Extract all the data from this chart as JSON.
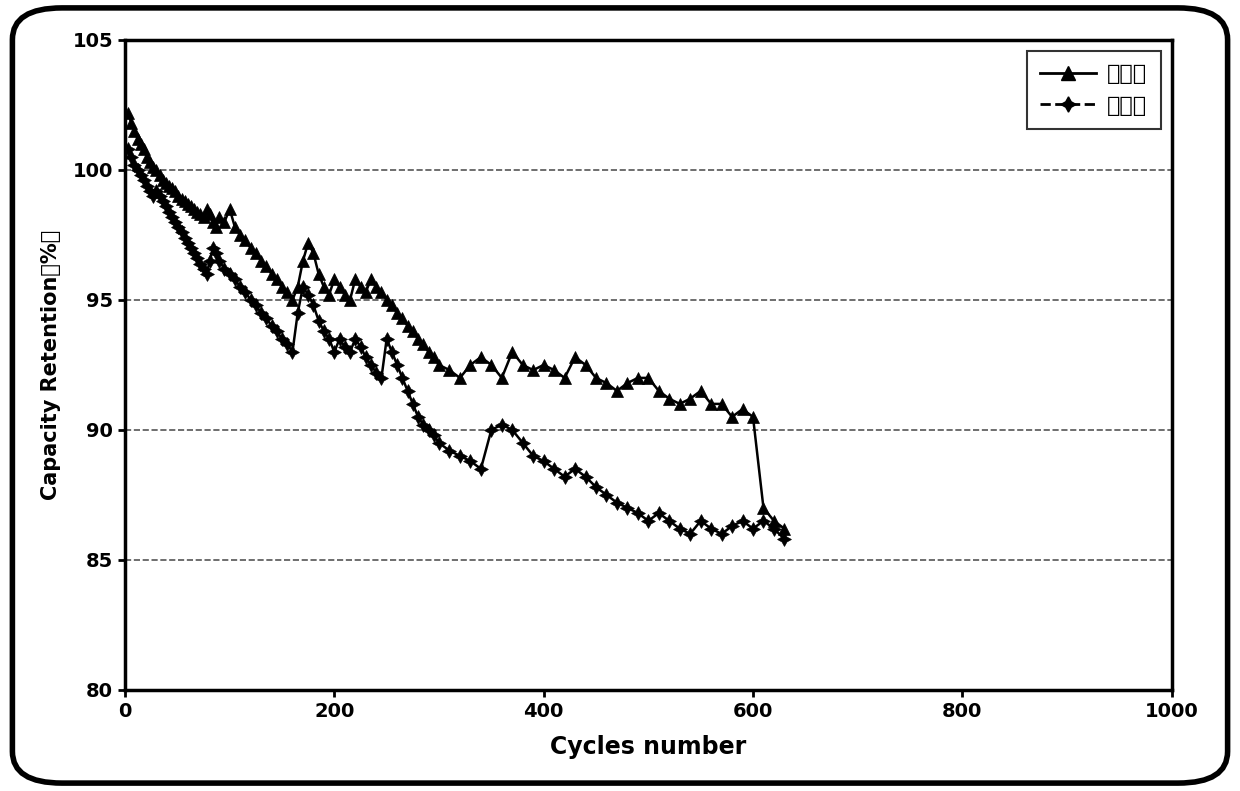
{
  "xlabel": "Cycles number",
  "ylabel": "Capacity Retention（%）",
  "xlim": [
    0,
    1000
  ],
  "ylim": [
    80,
    105
  ],
  "yticks": [
    80,
    85,
    90,
    95,
    100,
    105
  ],
  "xticks": [
    0,
    200,
    400,
    600,
    800,
    1000
  ],
  "line_color": "#000000",
  "background_color": "#ffffff",
  "legend_labels": [
    "实验组",
    "对比组"
  ],
  "series1_x": [
    3,
    6,
    9,
    12,
    15,
    18,
    21,
    24,
    27,
    30,
    33,
    36,
    39,
    42,
    45,
    48,
    51,
    54,
    57,
    60,
    63,
    66,
    69,
    72,
    75,
    78,
    81,
    84,
    87,
    90,
    95,
    100,
    105,
    110,
    115,
    120,
    125,
    130,
    135,
    140,
    145,
    150,
    155,
    160,
    165,
    170,
    175,
    180,
    185,
    190,
    195,
    200,
    205,
    210,
    215,
    220,
    225,
    230,
    235,
    240,
    245,
    250,
    255,
    260,
    265,
    270,
    275,
    280,
    285,
    290,
    295,
    300,
    310,
    320,
    330,
    340,
    350,
    360,
    370,
    380,
    390,
    400,
    410,
    420,
    430,
    440,
    450,
    460,
    470,
    480,
    490,
    500,
    510,
    520,
    530,
    540,
    550,
    560,
    570,
    580,
    590,
    600,
    610,
    620,
    630
  ],
  "series1_y": [
    102.2,
    101.8,
    101.5,
    101.2,
    101.0,
    100.8,
    100.5,
    100.3,
    100.1,
    100.0,
    99.8,
    99.6,
    99.5,
    99.4,
    99.3,
    99.2,
    99.0,
    98.9,
    98.8,
    98.7,
    98.6,
    98.5,
    98.4,
    98.3,
    98.2,
    98.5,
    98.3,
    98.0,
    97.8,
    98.2,
    98.0,
    98.5,
    97.8,
    97.5,
    97.3,
    97.0,
    96.8,
    96.5,
    96.3,
    96.0,
    95.8,
    95.5,
    95.3,
    95.0,
    95.5,
    96.5,
    97.2,
    96.8,
    96.0,
    95.5,
    95.2,
    95.8,
    95.5,
    95.2,
    95.0,
    95.8,
    95.5,
    95.3,
    95.8,
    95.5,
    95.3,
    95.0,
    94.8,
    94.5,
    94.3,
    94.0,
    93.8,
    93.5,
    93.3,
    93.0,
    92.8,
    92.5,
    92.3,
    92.0,
    92.5,
    92.8,
    92.5,
    92.0,
    93.0,
    92.5,
    92.3,
    92.5,
    92.3,
    92.0,
    92.8,
    92.5,
    92.0,
    91.8,
    91.5,
    91.8,
    92.0,
    92.0,
    91.5,
    91.2,
    91.0,
    91.2,
    91.5,
    91.0,
    91.0,
    90.5,
    90.8,
    90.5,
    87.0,
    86.5,
    86.2
  ],
  "series2_x": [
    3,
    6,
    9,
    12,
    15,
    18,
    21,
    24,
    27,
    30,
    33,
    36,
    39,
    42,
    45,
    48,
    51,
    54,
    57,
    60,
    63,
    66,
    69,
    72,
    75,
    78,
    81,
    84,
    87,
    90,
    95,
    100,
    105,
    110,
    115,
    120,
    125,
    130,
    135,
    140,
    145,
    150,
    155,
    160,
    165,
    170,
    175,
    180,
    185,
    190,
    195,
    200,
    205,
    210,
    215,
    220,
    225,
    230,
    235,
    240,
    245,
    250,
    255,
    260,
    265,
    270,
    275,
    280,
    285,
    290,
    295,
    300,
    310,
    320,
    330,
    340,
    350,
    360,
    370,
    380,
    390,
    400,
    410,
    420,
    430,
    440,
    450,
    460,
    470,
    480,
    490,
    500,
    510,
    520,
    530,
    540,
    550,
    560,
    570,
    580,
    590,
    600,
    610,
    620,
    630
  ],
  "series2_y": [
    100.8,
    100.5,
    100.2,
    100.0,
    99.8,
    99.6,
    99.4,
    99.2,
    99.0,
    99.2,
    99.0,
    98.8,
    98.6,
    98.4,
    98.2,
    98.0,
    97.8,
    97.6,
    97.4,
    97.2,
    97.0,
    96.8,
    96.6,
    96.4,
    96.2,
    96.0,
    96.5,
    97.0,
    96.8,
    96.5,
    96.2,
    96.0,
    95.8,
    95.5,
    95.3,
    95.0,
    94.8,
    94.5,
    94.3,
    94.0,
    93.8,
    93.5,
    93.3,
    93.0,
    94.5,
    95.5,
    95.2,
    94.8,
    94.2,
    93.8,
    93.5,
    93.0,
    93.5,
    93.2,
    93.0,
    93.5,
    93.2,
    92.8,
    92.5,
    92.2,
    92.0,
    93.5,
    93.0,
    92.5,
    92.0,
    91.5,
    91.0,
    90.5,
    90.2,
    90.0,
    89.8,
    89.5,
    89.2,
    89.0,
    88.8,
    88.5,
    90.0,
    90.2,
    90.0,
    89.5,
    89.0,
    88.8,
    88.5,
    88.2,
    88.5,
    88.2,
    87.8,
    87.5,
    87.2,
    87.0,
    86.8,
    86.5,
    86.8,
    86.5,
    86.2,
    86.0,
    86.5,
    86.2,
    86.0,
    86.3,
    86.5,
    86.2,
    86.5,
    86.2,
    85.8
  ]
}
